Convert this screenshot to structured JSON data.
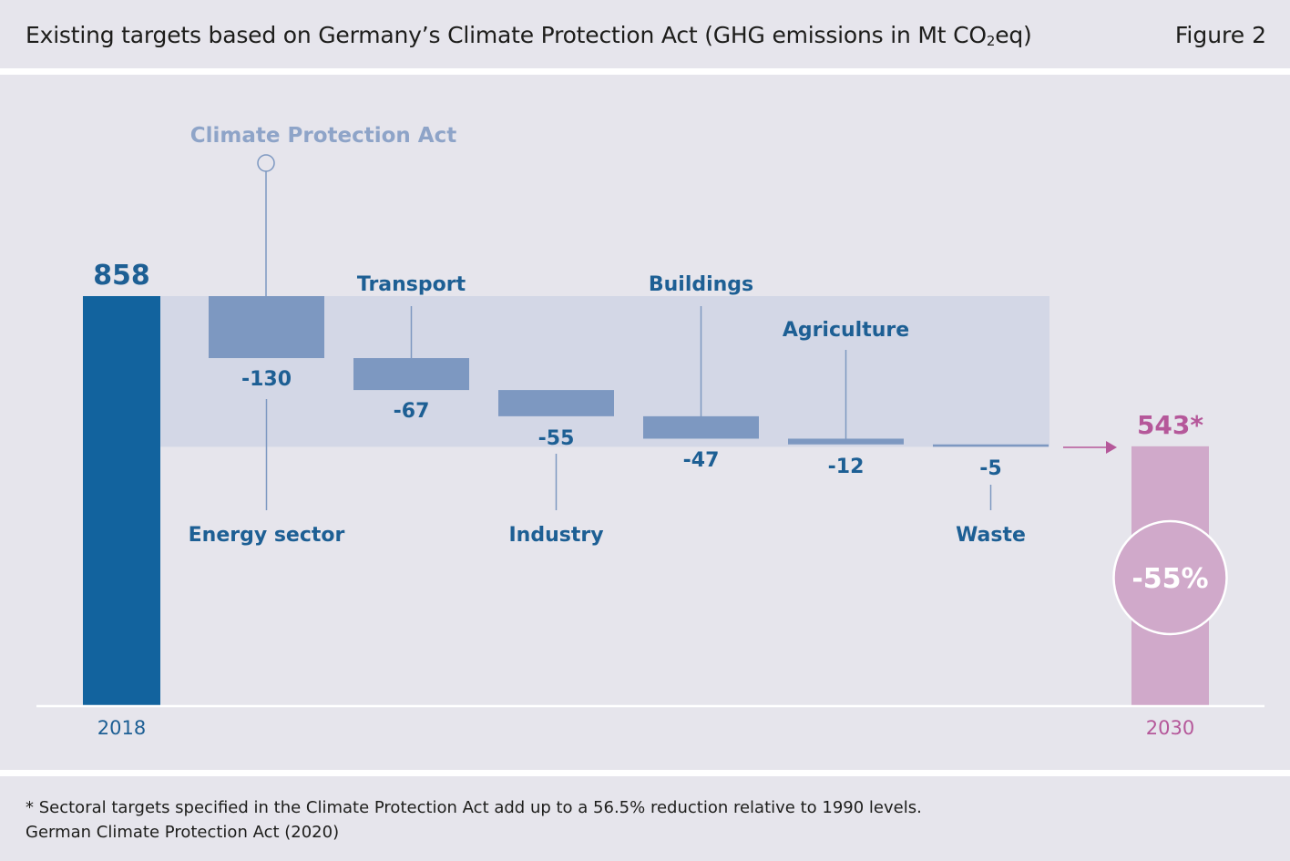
{
  "header": {
    "title_prefix": "Existing targets based on Germany’s Climate Protection Act (GHG emissions in Mt CO",
    "title_sub": "2",
    "title_suffix": "eq)",
    "figure_label": "Figure 2"
  },
  "chart_data": {
    "type": "bar",
    "subtype": "waterfall",
    "title": "Existing targets based on Germany’s Climate Protection Act (GHG emissions in Mt CO2eq)",
    "group_label": "Climate Protection Act",
    "start": {
      "category": "2018",
      "value": 858,
      "label": "858"
    },
    "steps": [
      {
        "category": "Energy sector",
        "value": -130,
        "label": "-130"
      },
      {
        "category": "Transport",
        "value": -67,
        "label": "-67"
      },
      {
        "category": "Industry",
        "value": -55,
        "label": "-55"
      },
      {
        "category": "Buildings",
        "value": -47,
        "label": "-47"
      },
      {
        "category": "Agriculture",
        "value": -12,
        "label": "-12"
      },
      {
        "category": "Waste",
        "value": -5,
        "label": "-5"
      }
    ],
    "end": {
      "category": "2030",
      "value": 543,
      "label": "543*",
      "reduction_label": "-55%"
    },
    "colors": {
      "start_bar": "#12639e",
      "step_bar": "#7d98c1",
      "band": "#d3d7e6",
      "end_bar": "#d0a9ca",
      "end_accent": "#b5589a",
      "label_blue": "#1d5f94",
      "group_label": "#8ea4c8",
      "axis": "#ffffff",
      "panel": "#e6e5ec"
    }
  },
  "footer": {
    "note": "* Sectoral targets specified in the Climate Protection Act add up to a 56.5% reduction relative to 1990 levels.",
    "source": "German Climate Protection Act (2020)"
  }
}
